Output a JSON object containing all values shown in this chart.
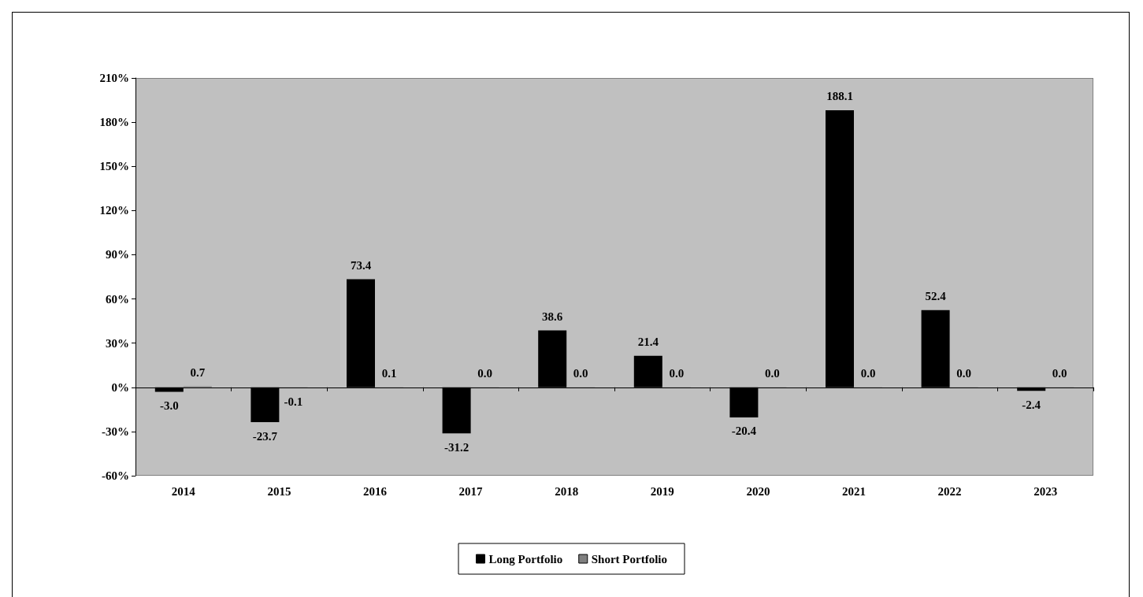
{
  "chart_data": {
    "type": "bar",
    "categories": [
      "2014",
      "2015",
      "2016",
      "2017",
      "2018",
      "2019",
      "2020",
      "2021",
      "2022",
      "2023"
    ],
    "series": [
      {
        "name": "Long Portfolio",
        "color": "#000000",
        "values": [
          -3.0,
          -23.7,
          73.4,
          -31.2,
          38.6,
          21.4,
          -20.4,
          188.1,
          52.4,
          -2.4
        ],
        "value_labels": [
          "-3.0",
          "-23.7",
          "73.4",
          "-31.2",
          "38.6",
          "21.4",
          "-20.4",
          "188.1",
          "52.4",
          "-2.4"
        ]
      },
      {
        "name": "Short Portfolio",
        "color": "#808080",
        "values": [
          0.7,
          -0.1,
          0.1,
          0.0,
          0.0,
          0.0,
          0.0,
          0.0,
          0.0,
          0.0
        ],
        "value_labels": [
          "0.7",
          "-0.1",
          "0.1",
          "0.0",
          "0.0",
          "0.0",
          "0.0",
          "0.0",
          "0.0",
          "0.0"
        ]
      }
    ],
    "ylim": [
      -60,
      210
    ],
    "yticks": [
      {
        "value": -60,
        "label": "-60%"
      },
      {
        "value": -30,
        "label": "-30%"
      },
      {
        "value": 0,
        "label": "0%"
      },
      {
        "value": 30,
        "label": "30%"
      },
      {
        "value": 60,
        "label": "60%"
      },
      {
        "value": 90,
        "label": "90%"
      },
      {
        "value": 120,
        "label": "120%"
      },
      {
        "value": 150,
        "label": "150%"
      },
      {
        "value": 180,
        "label": "180%"
      },
      {
        "value": 210,
        "label": "210%"
      }
    ],
    "legend": "bottom"
  }
}
